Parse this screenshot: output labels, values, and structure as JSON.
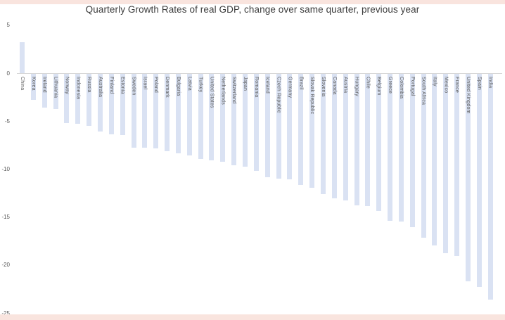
{
  "frame": {
    "border_band_color": "#f9e4de",
    "background_color": "#ffffff"
  },
  "chart_data": {
    "type": "bar",
    "title": "Quarterly Growth Rates of real GDP, change over same quarter, previous year",
    "title_color": "#3c3c3c",
    "categories": [
      "China",
      "Korea",
      "Ireland",
      "Lithuania",
      "Norway",
      "Indonesia",
      "Russia",
      "Australia",
      "Finland",
      "Estonia",
      "Sweden",
      "Israel",
      "Poland",
      "Denmark",
      "Bulgaria",
      "Latvia",
      "Turkey",
      "United States",
      "Netherlands",
      "Switzerland",
      "Japan",
      "Romania",
      "Iceland",
      "Czech Republic",
      "Germany",
      "Brazil",
      "Slovak Republic",
      "Slovenia",
      "Canada",
      "Austria",
      "Hungary",
      "Chile",
      "Belgium",
      "Greece",
      "Colombia",
      "Portugal",
      "South Africa",
      "Italy",
      "Mexico",
      "France",
      "United Kingdom",
      "Spain",
      "India"
    ],
    "values": [
      3.2,
      -2.7,
      -3.5,
      -3.7,
      -5.1,
      -5.2,
      -5.4,
      -6.0,
      -6.3,
      -6.4,
      -7.7,
      -7.7,
      -7.8,
      -8.1,
      -8.3,
      -8.5,
      -8.9,
      -9.0,
      -9.2,
      -9.5,
      -9.7,
      -10.1,
      -10.8,
      -10.9,
      -11.0,
      -11.6,
      -11.9,
      -12.5,
      -13.0,
      -13.2,
      -13.7,
      -13.8,
      -14.3,
      -15.3,
      -15.4,
      -16.0,
      -17.1,
      -17.9,
      -18.7,
      -19.0,
      -21.6,
      -22.2,
      -23.5
    ],
    "xlabel": "",
    "ylabel": "",
    "ylim": [
      -25,
      5
    ],
    "yticks": [
      5,
      0,
      -5,
      -10,
      -15,
      -20,
      -25
    ],
    "grid": false,
    "legend": false,
    "bar_color": "#dae2f3",
    "axis_color": "#d8d8d8",
    "tick_label_color": "#595959",
    "category_label_color": "#595959"
  }
}
